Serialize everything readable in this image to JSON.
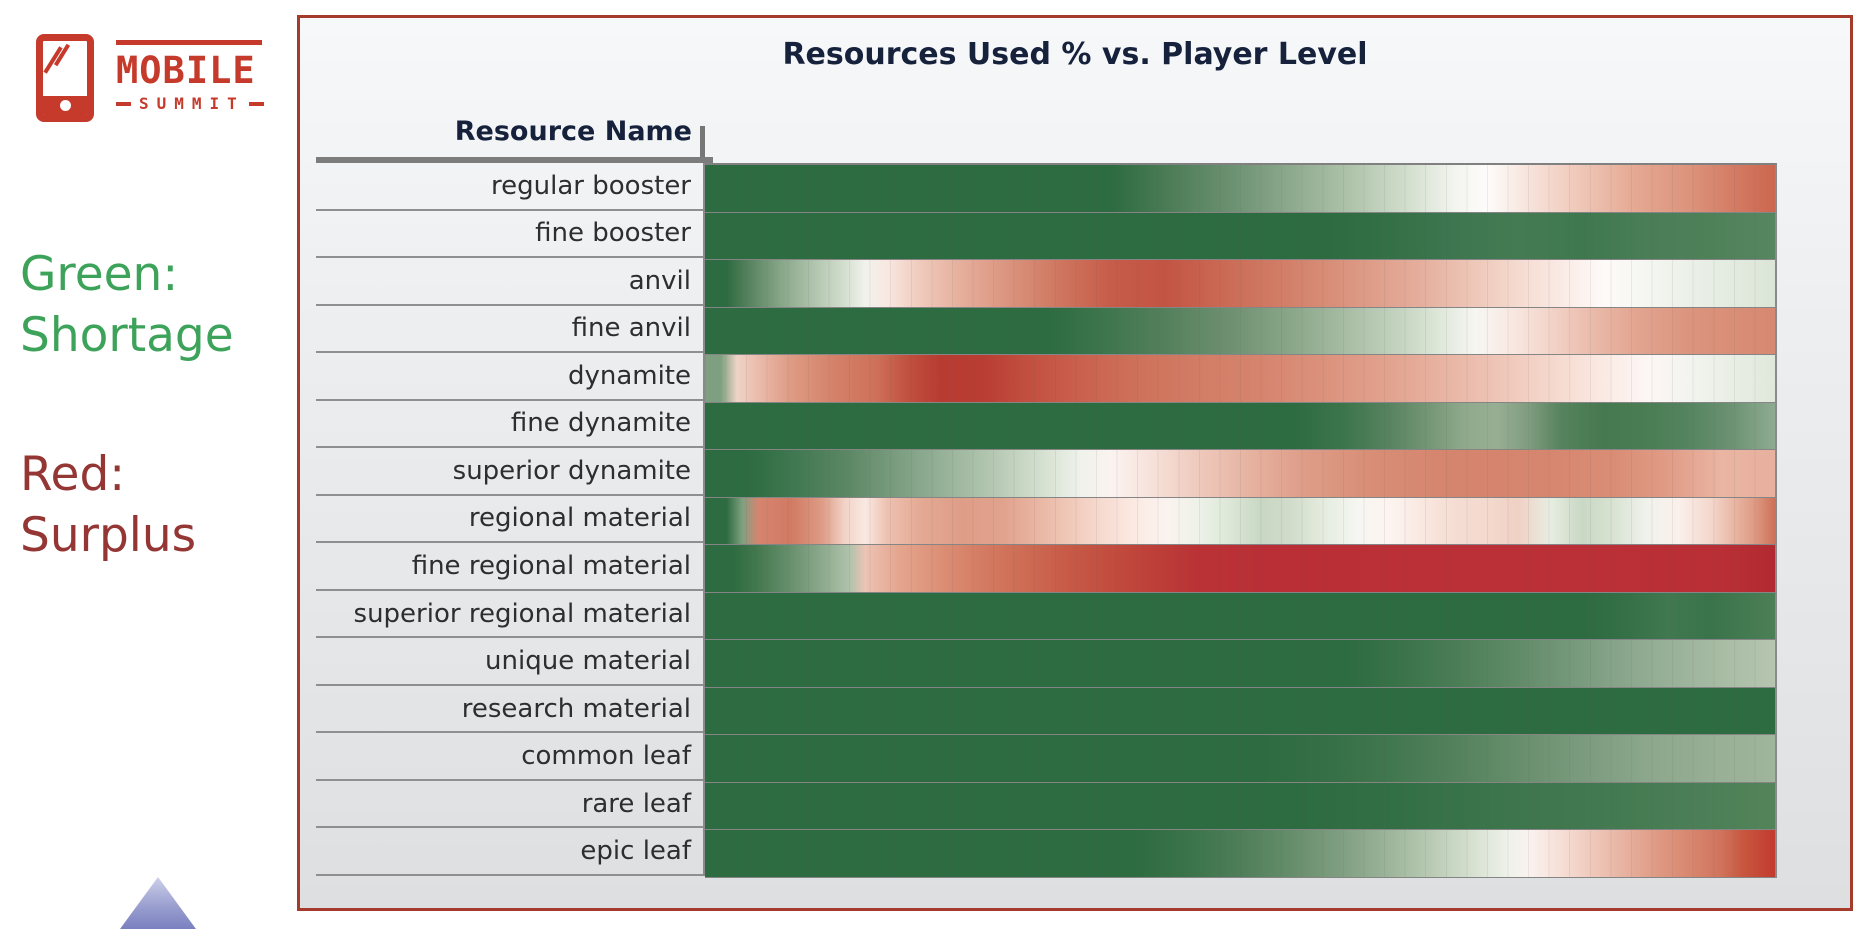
{
  "logo": {
    "brand": "MOBILE",
    "event": "SUMMIT",
    "color": "#C63A2C"
  },
  "legend": {
    "green_label": "Green:",
    "green_desc": "Shortage",
    "green_color": "#3EA35A",
    "red_label": "Red:",
    "red_desc": "Surplus",
    "red_color": "#943634"
  },
  "chart_data": {
    "type": "heatmap",
    "title": "Resources Used % vs. Player Level",
    "row_header": "Resource Name",
    "x_axis": {
      "label": "",
      "tick_labels_visible": false,
      "columns": 52
    },
    "legend_position": "left-of-chart",
    "color_semantics": {
      "green": "Shortage",
      "red": "Surplus"
    },
    "palette": {
      "shortage_green": "#2D6B40",
      "surplus_red": "#B92F35",
      "neutral_white": "#FFFFFF"
    },
    "panel_border_color": "#A43B2D",
    "rows": [
      {
        "name": "regular booster",
        "stops": [
          [
            0,
            "#2D6B40"
          ],
          [
            38,
            "#2D6B40"
          ],
          [
            43,
            "#4A7B55"
          ],
          [
            49,
            "#6A9070"
          ],
          [
            55,
            "#8FAA8F"
          ],
          [
            61,
            "#B3C6AF"
          ],
          [
            66,
            "#D5E0D0"
          ],
          [
            70,
            "#F2F4EE"
          ],
          [
            73,
            "#FEFCFB"
          ],
          [
            77,
            "#F7E3DB"
          ],
          [
            82,
            "#EFC6B6"
          ],
          [
            87,
            "#E5A892"
          ],
          [
            92,
            "#DC937C"
          ],
          [
            100,
            "#CC664F"
          ]
        ]
      },
      {
        "name": "fine booster",
        "stops": [
          [
            0,
            "#2D6B40"
          ],
          [
            58,
            "#2D6B40"
          ],
          [
            64,
            "#347046"
          ],
          [
            70,
            "#3D7650"
          ],
          [
            76,
            "#457B53"
          ],
          [
            82,
            "#3F784E"
          ],
          [
            88,
            "#4A7E56"
          ],
          [
            94,
            "#4F8159"
          ],
          [
            100,
            "#568660"
          ]
        ]
      },
      {
        "name": "anvil",
        "stops": [
          [
            0,
            "#2D6B40"
          ],
          [
            2,
            "#2D6B40"
          ],
          [
            4,
            "#55815E"
          ],
          [
            7,
            "#86A587"
          ],
          [
            10,
            "#AEC2AB"
          ],
          [
            13,
            "#D3DECE"
          ],
          [
            15,
            "#F1F2EC"
          ],
          [
            17,
            "#F8E8E1"
          ],
          [
            20,
            "#F0CBBD"
          ],
          [
            24,
            "#E5AE9B"
          ],
          [
            28,
            "#DB9681"
          ],
          [
            33,
            "#CF7760"
          ],
          [
            38,
            "#C65C49"
          ],
          [
            43,
            "#C35443"
          ],
          [
            49,
            "#CB6C56"
          ],
          [
            55,
            "#D3816B"
          ],
          [
            61,
            "#DC9883"
          ],
          [
            67,
            "#E5AF9D"
          ],
          [
            72,
            "#EEC8B9"
          ],
          [
            77,
            "#F6DFD5"
          ],
          [
            81,
            "#FBEEE9"
          ],
          [
            84,
            "#FEFAF9"
          ],
          [
            88,
            "#F5F6F1"
          ],
          [
            93,
            "#E9EFE6"
          ],
          [
            100,
            "#DBE5D7"
          ]
        ]
      },
      {
        "name": "fine anvil",
        "stops": [
          [
            0,
            "#2D6B40"
          ],
          [
            32,
            "#2D6B40"
          ],
          [
            37,
            "#3C754C"
          ],
          [
            43,
            "#54805C"
          ],
          [
            49,
            "#6E9070"
          ],
          [
            55,
            "#8BA78A"
          ],
          [
            60,
            "#A8BDA4"
          ],
          [
            65,
            "#C5D4C0"
          ],
          [
            69,
            "#E1E9DC"
          ],
          [
            72,
            "#F7F6F2"
          ],
          [
            75,
            "#F9EAE4"
          ],
          [
            79,
            "#F3D4C9"
          ],
          [
            83,
            "#EABAAA"
          ],
          [
            87,
            "#E2A590"
          ],
          [
            92,
            "#DB947E"
          ],
          [
            100,
            "#D78870"
          ]
        ]
      },
      {
        "name": "dynamite",
        "stops": [
          [
            0,
            "#7FA080"
          ],
          [
            1.5,
            "#7FA080"
          ],
          [
            3,
            "#EFD3C7"
          ],
          [
            5,
            "#EABBAB"
          ],
          [
            8,
            "#DE9B84"
          ],
          [
            12,
            "#D5816A"
          ],
          [
            16,
            "#CE7059"
          ],
          [
            19,
            "#C1503F"
          ],
          [
            22,
            "#B83B31"
          ],
          [
            26,
            "#B93D33"
          ],
          [
            30,
            "#C24F3F"
          ],
          [
            35,
            "#C9604D"
          ],
          [
            40,
            "#CE7059"
          ],
          [
            46,
            "#D27C65"
          ],
          [
            52,
            "#D6846E"
          ],
          [
            58,
            "#DB927D"
          ],
          [
            64,
            "#E2A38F"
          ],
          [
            70,
            "#E9B7A6"
          ],
          [
            76,
            "#F1CCBF"
          ],
          [
            81,
            "#F7DFD5"
          ],
          [
            85,
            "#FBEDE8"
          ],
          [
            88,
            "#FDF6F4"
          ],
          [
            92,
            "#F3F4EF"
          ],
          [
            100,
            "#DFE8DB"
          ]
        ]
      },
      {
        "name": "fine dynamite",
        "stops": [
          [
            0,
            "#2D6B40"
          ],
          [
            55,
            "#2D6B40"
          ],
          [
            60,
            "#3E764C"
          ],
          [
            64,
            "#588361"
          ],
          [
            68,
            "#789877"
          ],
          [
            71,
            "#90A98D"
          ],
          [
            74,
            "#97AE93"
          ],
          [
            77,
            "#7F9C7F"
          ],
          [
            80,
            "#56835D"
          ],
          [
            84,
            "#45794F"
          ],
          [
            88,
            "#4A7D54"
          ],
          [
            92,
            "#558460"
          ],
          [
            96,
            "#6C9273"
          ],
          [
            100,
            "#8EAB91"
          ]
        ]
      },
      {
        "name": "superior dynamite",
        "stops": [
          [
            0,
            "#2D6B40"
          ],
          [
            4,
            "#2D6B40"
          ],
          [
            8,
            "#3E7750"
          ],
          [
            13,
            "#5A8663"
          ],
          [
            18,
            "#7B9D80"
          ],
          [
            23,
            "#9BB59B"
          ],
          [
            28,
            "#BCCDB8"
          ],
          [
            32,
            "#D8E3D3"
          ],
          [
            35,
            "#EFF2EB"
          ],
          [
            38,
            "#FBF3F0"
          ],
          [
            42,
            "#F6E0D8"
          ],
          [
            46,
            "#EFCABD"
          ],
          [
            51,
            "#E6B2A0"
          ],
          [
            56,
            "#DE9D88"
          ],
          [
            62,
            "#D88E77"
          ],
          [
            70,
            "#D5846D"
          ],
          [
            78,
            "#D6856E"
          ],
          [
            85,
            "#DA8D76"
          ],
          [
            90,
            "#E09C86"
          ],
          [
            95,
            "#EAB5A3"
          ],
          [
            100,
            "#E8B09E"
          ]
        ]
      },
      {
        "name": "regional material",
        "stops": [
          [
            0,
            "#2D6B40"
          ],
          [
            2,
            "#2D6B40"
          ],
          [
            3.5,
            "#7FA080"
          ],
          [
            5,
            "#D6846F"
          ],
          [
            8,
            "#D17A63"
          ],
          [
            11,
            "#DE9C86"
          ],
          [
            13,
            "#F1D2C6"
          ],
          [
            15,
            "#F9E9E2"
          ],
          [
            17,
            "#EEC1B1"
          ],
          [
            20,
            "#E4AA95"
          ],
          [
            24,
            "#DE9D87"
          ],
          [
            28,
            "#E1A38E"
          ],
          [
            31,
            "#E9B5A2"
          ],
          [
            34,
            "#F0C8B8"
          ],
          [
            37,
            "#F6DACF"
          ],
          [
            40,
            "#FBE9E2"
          ],
          [
            43,
            "#FBF3EF"
          ],
          [
            46,
            "#EEF2E9"
          ],
          [
            49,
            "#DDE7D8"
          ],
          [
            52,
            "#C8D7C3"
          ],
          [
            55,
            "#D2DDCB"
          ],
          [
            58,
            "#E6EDE0"
          ],
          [
            61,
            "#F6F6F2"
          ],
          [
            64,
            "#FDF4F0"
          ],
          [
            67,
            "#F9E8E0"
          ],
          [
            70,
            "#F5DDD3"
          ],
          [
            73,
            "#F4D9CE"
          ],
          [
            76,
            "#F0D1C4"
          ],
          [
            79,
            "#E7EDE2"
          ],
          [
            82,
            "#C9D8C4"
          ],
          [
            85,
            "#D9E3D3"
          ],
          [
            88,
            "#F0F2EC"
          ],
          [
            91,
            "#FBF0EB"
          ],
          [
            94,
            "#F4D7CC"
          ],
          [
            96,
            "#EAB9A7"
          ],
          [
            98,
            "#DE9C85"
          ],
          [
            100,
            "#CE7058"
          ]
        ]
      },
      {
        "name": "fine regional material",
        "stops": [
          [
            0,
            "#2D6B40"
          ],
          [
            2.5,
            "#2D6B40"
          ],
          [
            5,
            "#45794F"
          ],
          [
            8,
            "#68906D"
          ],
          [
            11,
            "#8DAA8D"
          ],
          [
            13.5,
            "#AFC3AC"
          ],
          [
            15,
            "#EDC3B5"
          ],
          [
            18,
            "#E5A68F"
          ],
          [
            22,
            "#DC8F76"
          ],
          [
            26,
            "#D47B62"
          ],
          [
            30,
            "#CD6B53"
          ],
          [
            34,
            "#C75A47"
          ],
          [
            38,
            "#C24C3E"
          ],
          [
            42,
            "#BD3F38"
          ],
          [
            46,
            "#BA3236"
          ],
          [
            52,
            "#B92F35"
          ],
          [
            75,
            "#BB3036"
          ],
          [
            95,
            "#B92F35"
          ],
          [
            100,
            "#B22A31"
          ]
        ]
      },
      {
        "name": "superior regional material",
        "stops": [
          [
            0,
            "#2D6B40"
          ],
          [
            82,
            "#2D6B40"
          ],
          [
            86,
            "#357046"
          ],
          [
            90,
            "#40784F"
          ],
          [
            94,
            "#3A744A"
          ],
          [
            100,
            "#4C7F56"
          ]
        ]
      },
      {
        "name": "unique material",
        "stops": [
          [
            0,
            "#2D6B40"
          ],
          [
            60,
            "#2D6B40"
          ],
          [
            65,
            "#3A7349"
          ],
          [
            70,
            "#4A7D55"
          ],
          [
            75,
            "#5D8965"
          ],
          [
            80,
            "#719577"
          ],
          [
            85,
            "#86A489"
          ],
          [
            90,
            "#98B098"
          ],
          [
            95,
            "#A8BCA4"
          ],
          [
            100,
            "#B6C5B0"
          ]
        ]
      },
      {
        "name": "research material",
        "stops": [
          [
            0,
            "#2D6B40"
          ],
          [
            100,
            "#2D6B40"
          ]
        ]
      },
      {
        "name": "common leaf",
        "stops": [
          [
            0,
            "#2D6B40"
          ],
          [
            52,
            "#2D6B40"
          ],
          [
            58,
            "#356F45"
          ],
          [
            64,
            "#41774E"
          ],
          [
            70,
            "#53815C"
          ],
          [
            76,
            "#678E6C"
          ],
          [
            82,
            "#7B9B7E"
          ],
          [
            88,
            "#8CA78B"
          ],
          [
            94,
            "#97AF94"
          ],
          [
            100,
            "#9FB59C"
          ]
        ]
      },
      {
        "name": "rare leaf",
        "stops": [
          [
            0,
            "#2D6B40"
          ],
          [
            55,
            "#2D6B40"
          ],
          [
            65,
            "#336F45"
          ],
          [
            75,
            "#3D754C"
          ],
          [
            85,
            "#447A51"
          ],
          [
            93,
            "#4C7F57"
          ],
          [
            100,
            "#538459"
          ]
        ]
      },
      {
        "name": "epic leaf",
        "stops": [
          [
            0,
            "#2D6B40"
          ],
          [
            40,
            "#2D6B40"
          ],
          [
            45,
            "#3A7349"
          ],
          [
            50,
            "#4E7E58"
          ],
          [
            55,
            "#678E6C"
          ],
          [
            60,
            "#83A184"
          ],
          [
            64,
            "#9DB59B"
          ],
          [
            68,
            "#BACBB5"
          ],
          [
            72,
            "#D8E2D2"
          ],
          [
            75,
            "#EEF1EA"
          ],
          [
            77,
            "#FAF2EF"
          ],
          [
            80,
            "#F6DFD6"
          ],
          [
            83,
            "#EFC8BA"
          ],
          [
            86,
            "#E7B19F"
          ],
          [
            89,
            "#DF9A84"
          ],
          [
            92,
            "#D8876F"
          ],
          [
            95,
            "#D0735C"
          ],
          [
            97,
            "#C8573F"
          ],
          [
            100,
            "#C33A2E"
          ]
        ]
      }
    ]
  }
}
